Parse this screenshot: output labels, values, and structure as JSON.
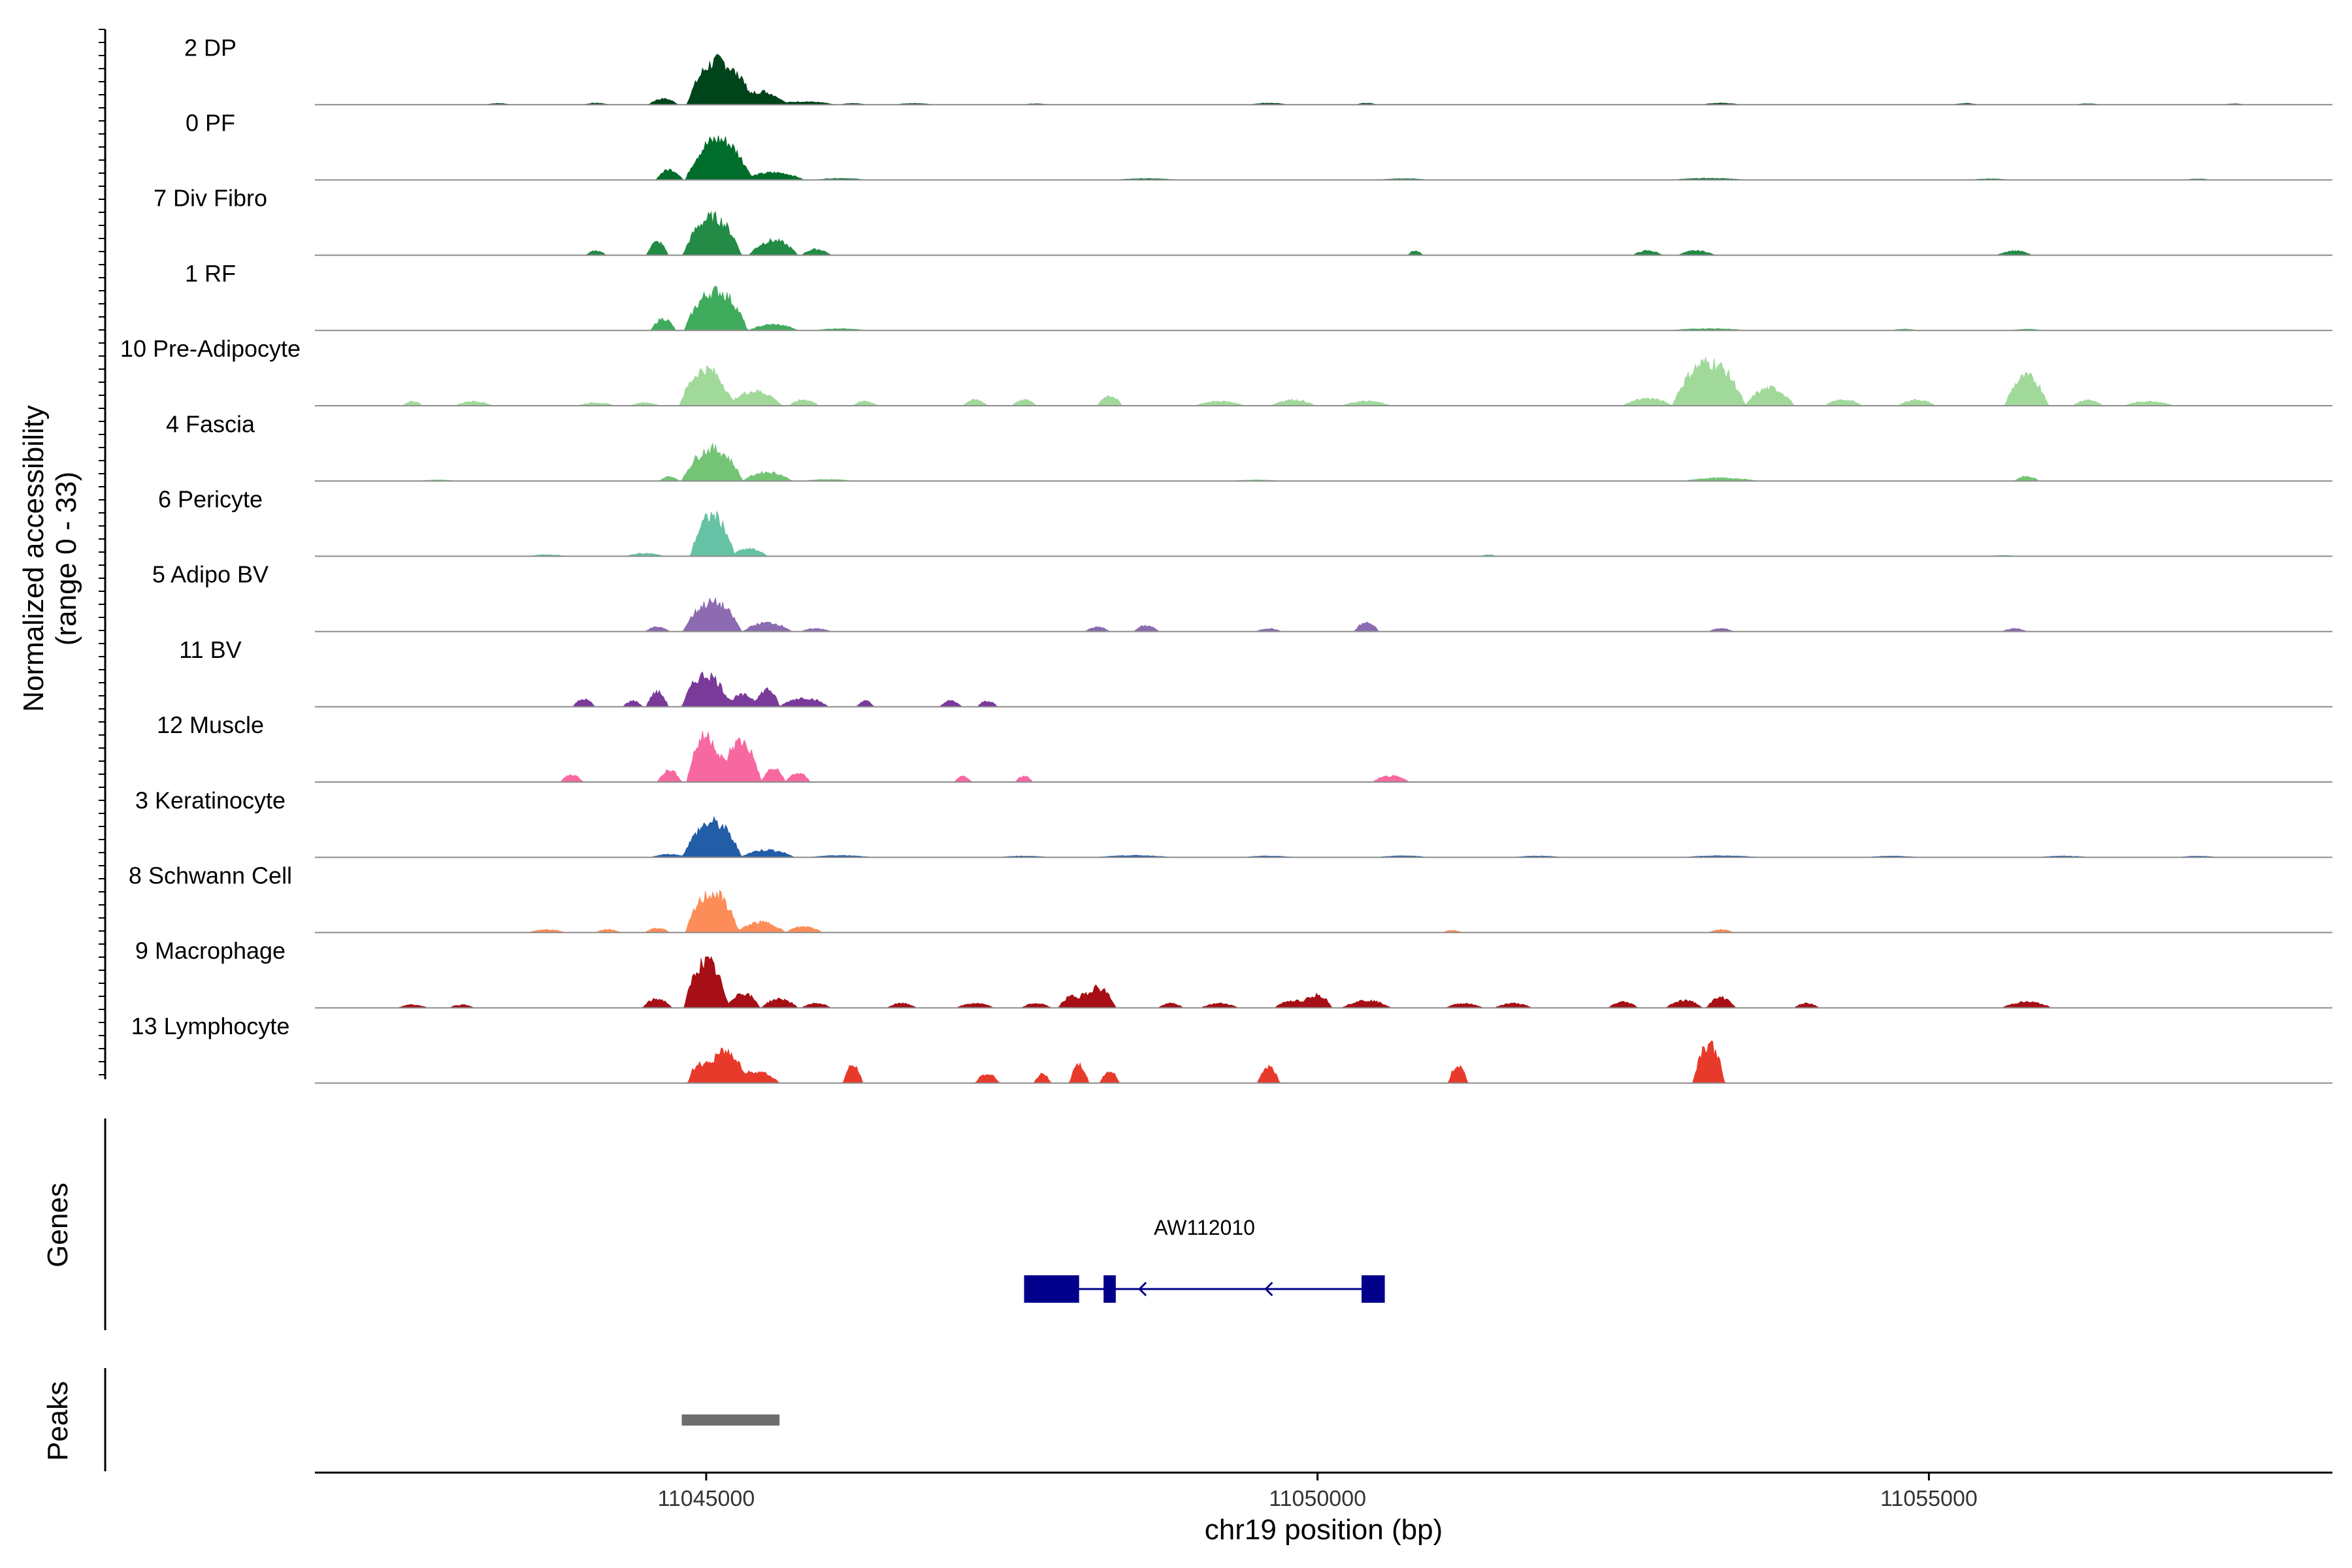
{
  "chart_data": {
    "type": "area",
    "description_visible": "coverage tracks",
    "ylabel_line1": "Normalized accessibility",
    "ylabel_line2": "(range 0 - 33)",
    "xlabel": "chr19 position (bp)",
    "xlim": [
      11041800,
      11058300
    ],
    "ylim": [
      0,
      33
    ],
    "x_ticks": [
      11045000,
      11050000,
      11055000
    ],
    "x_tick_labels": [
      "11045000",
      "11050000",
      "11055000"
    ],
    "gene_panel_label": "Genes",
    "peak_panel_label": "Peaks",
    "series": [
      {
        "name": "2 DP",
        "color": "#00441b",
        "peaks": [
          [
            11045100,
            30,
            260
          ],
          [
            11045450,
            9,
            200
          ],
          [
            11044650,
            4,
            120
          ],
          [
            11045800,
            2,
            250
          ],
          [
            11043300,
            0.8,
            100
          ],
          [
            11044100,
            1,
            100
          ],
          [
            11046200,
            0.8,
            100
          ],
          [
            11046700,
            0.8,
            150
          ],
          [
            11047700,
            0.6,
            100
          ],
          [
            11049600,
            1,
            150
          ],
          [
            11050400,
            1,
            80
          ],
          [
            11053300,
            1,
            150
          ],
          [
            11055300,
            0.8,
            100
          ],
          [
            11056300,
            0.6,
            100
          ],
          [
            11057500,
            0.5,
            80
          ]
        ]
      },
      {
        "name": "0 PF",
        "color": "#006d2c",
        "peaks": [
          [
            11045100,
            28,
            270
          ],
          [
            11044700,
            7,
            110
          ],
          [
            11045550,
            5,
            250
          ],
          [
            11046100,
            1,
            200
          ],
          [
            11048600,
            0.8,
            250
          ],
          [
            11050700,
            0.8,
            200
          ],
          [
            11053200,
            1,
            300
          ],
          [
            11055500,
            0.7,
            150
          ],
          [
            11057200,
            0.6,
            100
          ]
        ]
      },
      {
        "name": "7 Div Fibro",
        "color": "#238b45",
        "peaks": [
          [
            11045050,
            26,
            240
          ],
          [
            11044600,
            9,
            90
          ],
          [
            11045550,
            10,
            200
          ],
          [
            11045900,
            4,
            120
          ],
          [
            11044100,
            3,
            80
          ],
          [
            11050800,
            3,
            60
          ],
          [
            11052700,
            3,
            120
          ],
          [
            11053100,
            3,
            150
          ],
          [
            11055700,
            3,
            140
          ]
        ]
      },
      {
        "name": "1 RF",
        "color": "#41ab5d",
        "peaks": [
          [
            11045080,
            27,
            260
          ],
          [
            11044650,
            8,
            100
          ],
          [
            11045550,
            4,
            200
          ],
          [
            11046100,
            1.2,
            200
          ],
          [
            11053200,
            1.2,
            300
          ],
          [
            11054800,
            0.8,
            100
          ],
          [
            11055800,
            0.8,
            120
          ]
        ]
      },
      {
        "name": "10 Pre-Adipocyte",
        "color": "#a1d99b",
        "peaks": [
          [
            11045000,
            25,
            220
          ],
          [
            11045400,
            10,
            220
          ],
          [
            11045800,
            4,
            120
          ],
          [
            11042600,
            3,
            80
          ],
          [
            11043100,
            3,
            150
          ],
          [
            11044100,
            2,
            150
          ],
          [
            11044500,
            2,
            120
          ],
          [
            11046300,
            3,
            100
          ],
          [
            11047200,
            4,
            100
          ],
          [
            11047600,
            4,
            100
          ],
          [
            11048300,
            7,
            100
          ],
          [
            11049200,
            3,
            200
          ],
          [
            11049800,
            4,
            180
          ],
          [
            11050400,
            3,
            200
          ],
          [
            11053200,
            30,
            300
          ],
          [
            11052700,
            5,
            200
          ],
          [
            11053700,
            12,
            200
          ],
          [
            11054300,
            4,
            150
          ],
          [
            11054900,
            4,
            150
          ],
          [
            11055800,
            20,
            180
          ],
          [
            11056300,
            4,
            120
          ],
          [
            11056800,
            3,
            200
          ]
        ]
      },
      {
        "name": "4 Fascia",
        "color": "#74c476",
        "peaks": [
          [
            11045050,
            22,
            250
          ],
          [
            11045500,
            6,
            200
          ],
          [
            11044700,
            3,
            80
          ],
          [
            11046000,
            1,
            200
          ],
          [
            11053300,
            2,
            300
          ],
          [
            11055800,
            3,
            100
          ],
          [
            11042800,
            0.6,
            150
          ],
          [
            11049500,
            0.6,
            200
          ]
        ]
      },
      {
        "name": "6 Pericyte",
        "color": "#66c2a4",
        "peaks": [
          [
            11045050,
            28,
            180
          ],
          [
            11045350,
            5,
            150
          ],
          [
            11044500,
            2,
            150
          ],
          [
            11043700,
            1,
            150
          ],
          [
            11051400,
            1,
            60
          ],
          [
            11055600,
            0.6,
            100
          ]
        ]
      },
      {
        "name": "5 Adipo BV",
        "color": "#8c6bb1",
        "peaks": [
          [
            11045050,
            20,
            240
          ],
          [
            11045500,
            6,
            200
          ],
          [
            11044600,
            3,
            100
          ],
          [
            11045900,
            2,
            120
          ],
          [
            11048200,
            3,
            100
          ],
          [
            11048600,
            4,
            100
          ],
          [
            11050400,
            6,
            100
          ],
          [
            11049600,
            2,
            100
          ],
          [
            11053300,
            2,
            100
          ],
          [
            11055700,
            2,
            100
          ]
        ]
      },
      {
        "name": "11 BV",
        "color": "#7a3a9a",
        "peaks": [
          [
            11045000,
            22,
            200
          ],
          [
            11044600,
            10,
            90
          ],
          [
            11045300,
            8,
            140
          ],
          [
            11045500,
            12,
            100
          ],
          [
            11045800,
            6,
            200
          ],
          [
            11044000,
            5,
            90
          ],
          [
            11044400,
            4,
            80
          ],
          [
            11046300,
            4,
            70
          ],
          [
            11047000,
            4,
            90
          ],
          [
            11047300,
            4,
            80
          ]
        ]
      },
      {
        "name": "12 Muscle",
        "color": "#f768a1",
        "peaks": [
          [
            11045000,
            32,
            160
          ],
          [
            11045280,
            28,
            170
          ],
          [
            11045550,
            9,
            100
          ],
          [
            11044700,
            8,
            100
          ],
          [
            11045750,
            6,
            100
          ],
          [
            11043900,
            5,
            90
          ],
          [
            11047100,
            4,
            70
          ],
          [
            11047600,
            4,
            70
          ],
          [
            11050600,
            4,
            150
          ]
        ]
      },
      {
        "name": "3 Keratinocyte",
        "color": "#225ea8",
        "peaks": [
          [
            11045050,
            24,
            240
          ],
          [
            11045500,
            5,
            220
          ],
          [
            11044700,
            2,
            150
          ],
          [
            11046100,
            1.2,
            250
          ],
          [
            11047600,
            0.8,
            200
          ],
          [
            11048500,
            1.2,
            300
          ],
          [
            11049600,
            0.8,
            200
          ],
          [
            11050700,
            1,
            200
          ],
          [
            11051800,
            0.8,
            200
          ],
          [
            11053300,
            1,
            300
          ],
          [
            11054700,
            0.8,
            200
          ],
          [
            11056100,
            0.8,
            200
          ],
          [
            11057200,
            0.7,
            150
          ]
        ]
      },
      {
        "name": "8 Schwann Cell",
        "color": "#fc8d59",
        "peaks": [
          [
            11045050,
            27,
            220
          ],
          [
            11045450,
            7,
            200
          ],
          [
            11045800,
            4,
            150
          ],
          [
            11043700,
            2,
            150
          ],
          [
            11044200,
            2,
            100
          ],
          [
            11044600,
            3,
            100
          ],
          [
            11051100,
            1.5,
            80
          ],
          [
            11053300,
            2,
            100
          ]
        ]
      },
      {
        "name": "9 Macrophage",
        "color": "#a50f15",
        "peaks": [
          [
            11045000,
            32,
            180
          ],
          [
            11045300,
            10,
            140
          ],
          [
            11044600,
            6,
            120
          ],
          [
            11045600,
            6,
            150
          ],
          [
            11045900,
            3,
            120
          ],
          [
            11042600,
            2,
            120
          ],
          [
            11043000,
            2,
            100
          ],
          [
            11046600,
            3,
            120
          ],
          [
            11047200,
            3,
            150
          ],
          [
            11047700,
            3,
            120
          ],
          [
            11048000,
            8,
            120
          ],
          [
            11048200,
            14,
            150
          ],
          [
            11048800,
            3,
            100
          ],
          [
            11049200,
            3,
            150
          ],
          [
            11049800,
            5,
            150
          ],
          [
            11050000,
            9,
            120
          ],
          [
            11050400,
            5,
            200
          ],
          [
            11051200,
            3,
            150
          ],
          [
            11051600,
            3,
            150
          ],
          [
            11052500,
            4,
            120
          ],
          [
            11053000,
            5,
            150
          ],
          [
            11053300,
            7,
            120
          ],
          [
            11054000,
            3,
            100
          ],
          [
            11055800,
            4,
            200
          ]
        ]
      },
      {
        "name": "13 Lymphocyte",
        "color": "#e83a2b",
        "peaks": [
          [
            11045150,
            22,
            160
          ],
          [
            11044950,
            14,
            100
          ],
          [
            11045400,
            8,
            200
          ],
          [
            11046200,
            12,
            80
          ],
          [
            11047300,
            6,
            100
          ],
          [
            11047750,
            6,
            70
          ],
          [
            11048050,
            12,
            80
          ],
          [
            11048300,
            8,
            80
          ],
          [
            11049600,
            11,
            90
          ],
          [
            11051150,
            12,
            80
          ],
          [
            11053200,
            27,
            130
          ]
        ]
      }
    ],
    "genes": [
      {
        "name": "AW112010",
        "strand": "-",
        "start": 11047600,
        "end": 11050550,
        "exons": [
          [
            11047600,
            11048050
          ],
          [
            11048250,
            11048350
          ],
          [
            11050360,
            11050550
          ]
        ]
      }
    ],
    "peaks_regions": [
      [
        11044800,
        11045600
      ]
    ]
  }
}
